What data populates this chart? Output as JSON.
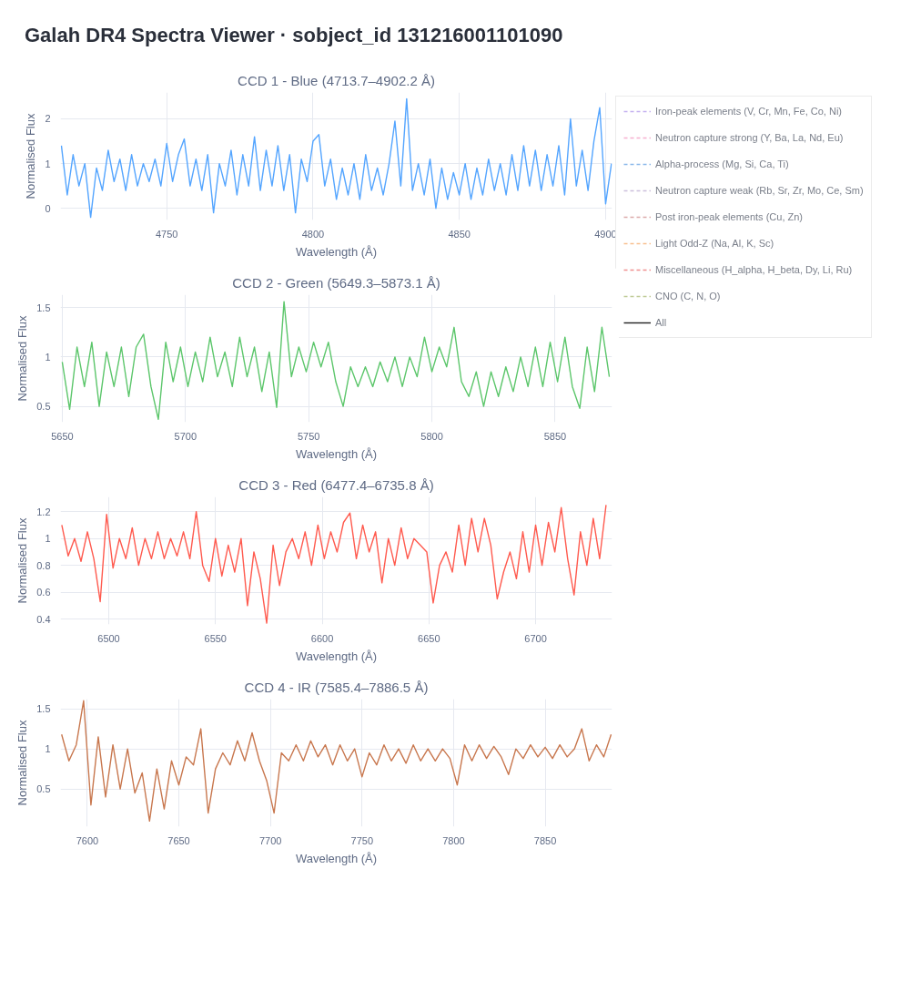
{
  "chart_data": [
    {
      "type": "other",
      "title": "Galah DR4 Spectra Viewer · sobject_id 131216001101090"
    },
    {
      "type": "line",
      "title": "CCD 1 - Blue (4713.7–4902.2 Å)",
      "xlabel": "Wavelength (Å)",
      "ylabel": "Normalised Flux",
      "xlim": [
        4713.7,
        4902.2
      ],
      "ylim": [
        -0.26,
        2.59
      ],
      "xticks": [
        4750,
        4800,
        4850,
        4900
      ],
      "yticks": [
        0,
        1,
        2
      ],
      "grid": true,
      "legend": "right",
      "series": [
        {
          "color": "#54a5ff",
          "x": [
            4714,
            4716,
            4718,
            4720,
            4722,
            4724,
            4726,
            4728,
            4730,
            4732,
            4734,
            4736,
            4738,
            4740,
            4742,
            4744,
            4746,
            4748,
            4750,
            4752,
            4754,
            4756,
            4758,
            4760,
            4762,
            4764,
            4766,
            4768,
            4770,
            4772,
            4774,
            4776,
            4778,
            4780,
            4782,
            4784,
            4786,
            4788,
            4790,
            4792,
            4794,
            4796,
            4798,
            4800,
            4802,
            4804,
            4806,
            4808,
            4810,
            4812,
            4814,
            4816,
            4818,
            4820,
            4822,
            4824,
            4826,
            4828,
            4830,
            4832,
            4834,
            4836,
            4838,
            4840,
            4842,
            4844,
            4846,
            4848,
            4850,
            4852,
            4854,
            4856,
            4858,
            4860,
            4862,
            4864,
            4866,
            4868,
            4870,
            4872,
            4874,
            4876,
            4878,
            4880,
            4882,
            4884,
            4886,
            4888,
            4890,
            4892,
            4894,
            4896,
            4898,
            4900,
            4902
          ],
          "values": [
            1.4,
            0.3,
            1.2,
            0.5,
            1.0,
            -0.2,
            0.9,
            0.4,
            1.3,
            0.6,
            1.1,
            0.4,
            1.2,
            0.5,
            1.0,
            0.6,
            1.1,
            0.5,
            1.45,
            0.6,
            1.2,
            1.55,
            0.5,
            1.1,
            0.4,
            1.2,
            -0.1,
            1.0,
            0.5,
            1.3,
            0.3,
            1.2,
            0.5,
            1.6,
            0.4,
            1.3,
            0.5,
            1.4,
            0.4,
            1.2,
            -0.1,
            1.1,
            0.6,
            1.5,
            1.65,
            0.5,
            1.1,
            0.2,
            0.9,
            0.3,
            1.0,
            0.2,
            1.2,
            0.4,
            0.9,
            0.3,
            1.0,
            1.95,
            0.5,
            2.45,
            0.4,
            1.0,
            0.3,
            1.1,
            0.0,
            0.9,
            0.2,
            0.8,
            0.3,
            1.0,
            0.2,
            0.9,
            0.3,
            1.1,
            0.4,
            1.0,
            0.3,
            1.2,
            0.4,
            1.4,
            0.5,
            1.3,
            0.4,
            1.2,
            0.5,
            1.4,
            0.3,
            2.0,
            0.5,
            1.3,
            0.4,
            1.5,
            2.25,
            0.1,
            1.0
          ]
        },
        {
          "name": "Iron-peak elements (V, Cr, Mn, Fe, Co, Ni)",
          "color": "#c4b0f0",
          "line_style": "dashed"
        },
        {
          "name": "Neutron capture strong (Y, Ba, La, Nd, Eu)",
          "color": "#f6b0d0",
          "line_style": "dashed"
        },
        {
          "name": "Alpha-process (Mg, Si, Ca, Ti)",
          "color": "#8ab8ea",
          "line_style": "dashed"
        },
        {
          "name": "Neutron capture weak (Rb, Sr, Zr, Mo, Ce, Sm)",
          "color": "#ccc0dc",
          "line_style": "dashed"
        },
        {
          "name": "Post iron-peak elements (Cu, Zn)",
          "color": "#dcaaaa",
          "line_style": "dashed"
        },
        {
          "name": "Light Odd-Z (Na, Al, K, Sc)",
          "color": "#f8c090",
          "line_style": "dashed"
        },
        {
          "name": "Miscellaneous (H_alpha, H_beta, Dy, Li, Ru)",
          "color": "#f09090",
          "line_style": "dashed"
        },
        {
          "name": "CNO (C, N, O)",
          "color": "#c0cc98",
          "line_style": "dashed"
        },
        {
          "name": "All",
          "color": "#222222",
          "line_style": "solid"
        }
      ]
    },
    {
      "type": "line",
      "title": "CCD 2 - Green (5649.3–5873.1 Å)",
      "xlabel": "Wavelength (Å)",
      "ylabel": "Normalised Flux",
      "xlim": [
        5649.3,
        5873.1
      ],
      "ylim": [
        0.34,
        1.63
      ],
      "xticks": [
        5650,
        5700,
        5750,
        5800,
        5850
      ],
      "yticks": [
        0.5,
        1,
        1.5
      ],
      "grid": true,
      "series": [
        {
          "color": "#5cc66b",
          "x": [
            5650,
            5653,
            5656,
            5659,
            5662,
            5665,
            5668,
            5671,
            5674,
            5677,
            5680,
            5683,
            5686,
            5689,
            5692,
            5695,
            5698,
            5701,
            5704,
            5707,
            5710,
            5713,
            5716,
            5719,
            5722,
            5725,
            5728,
            5731,
            5734,
            5737,
            5740,
            5743,
            5746,
            5749,
            5752,
            5755,
            5758,
            5761,
            5764,
            5767,
            5770,
            5773,
            5776,
            5779,
            5782,
            5785,
            5788,
            5791,
            5794,
            5797,
            5800,
            5803,
            5806,
            5809,
            5812,
            5815,
            5818,
            5821,
            5824,
            5827,
            5830,
            5833,
            5836,
            5839,
            5842,
            5845,
            5848,
            5851,
            5854,
            5857,
            5860,
            5863,
            5866,
            5869,
            5872
          ],
          "values": [
            0.95,
            0.47,
            1.1,
            0.7,
            1.15,
            0.5,
            1.05,
            0.7,
            1.1,
            0.6,
            1.1,
            1.23,
            0.7,
            0.37,
            1.15,
            0.75,
            1.1,
            0.7,
            1.05,
            0.75,
            1.2,
            0.8,
            1.05,
            0.7,
            1.2,
            0.8,
            1.1,
            0.65,
            1.05,
            0.49,
            1.56,
            0.8,
            1.1,
            0.85,
            1.15,
            0.9,
            1.15,
            0.75,
            0.5,
            0.9,
            0.7,
            0.9,
            0.7,
            0.95,
            0.75,
            1.0,
            0.7,
            1.0,
            0.8,
            1.2,
            0.85,
            1.1,
            0.9,
            1.3,
            0.75,
            0.6,
            0.85,
            0.5,
            0.85,
            0.6,
            0.9,
            0.65,
            1.0,
            0.7,
            1.1,
            0.7,
            1.15,
            0.75,
            1.2,
            0.7,
            0.48,
            1.1,
            0.65,
            1.3,
            0.8
          ]
        }
      ]
    },
    {
      "type": "line",
      "title": "CCD 3 - Red (6477.4–6735.8 Å)",
      "xlabel": "Wavelength (Å)",
      "ylabel": "Normalised Flux",
      "xlim": [
        6477.4,
        6735.8
      ],
      "ylim": [
        0.36,
        1.31
      ],
      "xticks": [
        6500,
        6550,
        6600,
        6650,
        6700
      ],
      "yticks": [
        0.4,
        0.6,
        0.8,
        1,
        1.2
      ],
      "grid": true,
      "series": [
        {
          "color": "#ff5a4e",
          "x": [
            6478,
            6481,
            6484,
            6487,
            6490,
            6493,
            6496,
            6499,
            6502,
            6505,
            6508,
            6511,
            6514,
            6517,
            6520,
            6523,
            6526,
            6529,
            6532,
            6535,
            6538,
            6541,
            6544,
            6547,
            6550,
            6553,
            6556,
            6559,
            6562,
            6565,
            6568,
            6571,
            6574,
            6577,
            6580,
            6583,
            6586,
            6589,
            6592,
            6595,
            6598,
            6601,
            6604,
            6607,
            6610,
            6613,
            6616,
            6619,
            6622,
            6625,
            6628,
            6631,
            6634,
            6637,
            6640,
            6643,
            6646,
            6649,
            6652,
            6655,
            6658,
            6661,
            6664,
            6667,
            6670,
            6673,
            6676,
            6679,
            6682,
            6685,
            6688,
            6691,
            6694,
            6697,
            6700,
            6703,
            6706,
            6709,
            6712,
            6715,
            6718,
            6721,
            6724,
            6727,
            6730,
            6733
          ],
          "values": [
            1.1,
            0.87,
            1.0,
            0.83,
            1.05,
            0.85,
            0.53,
            1.18,
            0.78,
            1.0,
            0.85,
            1.08,
            0.8,
            1.0,
            0.85,
            1.05,
            0.85,
            1.0,
            0.87,
            1.05,
            0.85,
            1.2,
            0.8,
            0.68,
            1.0,
            0.72,
            0.95,
            0.75,
            1.0,
            0.5,
            0.9,
            0.7,
            0.37,
            0.95,
            0.65,
            0.9,
            1.0,
            0.85,
            1.05,
            0.8,
            1.1,
            0.85,
            1.05,
            0.9,
            1.12,
            1.19,
            0.85,
            1.1,
            0.9,
            1.05,
            0.67,
            1.0,
            0.8,
            1.08,
            0.85,
            1.0,
            0.95,
            0.9,
            0.52,
            0.8,
            0.9,
            0.75,
            1.1,
            0.8,
            1.15,
            0.9,
            1.15,
            0.95,
            0.55,
            0.75,
            0.9,
            0.7,
            1.05,
            0.75,
            1.1,
            0.8,
            1.12,
            0.9,
            1.23,
            0.85,
            0.58,
            1.05,
            0.8,
            1.15,
            0.85,
            1.25
          ]
        }
      ]
    },
    {
      "type": "line",
      "title": "CCD 4 - IR (7585.4–7886.5 Å)",
      "xlabel": "Wavelength (Å)",
      "ylabel": "Normalised Flux",
      "xlim": [
        7585.4,
        7886.5
      ],
      "ylim": [
        0.03,
        1.62
      ],
      "xticks": [
        7600,
        7650,
        7700,
        7750,
        7800,
        7850
      ],
      "yticks": [
        0.5,
        1,
        1.5
      ],
      "grid": true,
      "series": [
        {
          "color": "#c8774e",
          "x": [
            7586,
            7590,
            7594,
            7598,
            7602,
            7606,
            7610,
            7614,
            7618,
            7622,
            7626,
            7630,
            7634,
            7638,
            7642,
            7646,
            7650,
            7654,
            7658,
            7662,
            7666,
            7670,
            7674,
            7678,
            7682,
            7686,
            7690,
            7694,
            7698,
            7702,
            7706,
            7710,
            7714,
            7718,
            7722,
            7726,
            7730,
            7734,
            7738,
            7742,
            7746,
            7750,
            7754,
            7758,
            7762,
            7766,
            7770,
            7774,
            7778,
            7782,
            7786,
            7790,
            7794,
            7798,
            7802,
            7806,
            7810,
            7814,
            7818,
            7822,
            7826,
            7830,
            7834,
            7838,
            7842,
            7846,
            7850,
            7854,
            7858,
            7862,
            7866,
            7870,
            7874,
            7878,
            7882,
            7886
          ],
          "values": [
            1.18,
            0.85,
            1.05,
            1.6,
            0.3,
            1.15,
            0.4,
            1.05,
            0.5,
            1.0,
            0.45,
            0.7,
            0.1,
            0.75,
            0.25,
            0.85,
            0.55,
            0.9,
            0.8,
            1.25,
            0.2,
            0.75,
            0.95,
            0.8,
            1.1,
            0.85,
            1.2,
            0.85,
            0.6,
            0.2,
            0.95,
            0.85,
            1.05,
            0.85,
            1.1,
            0.9,
            1.05,
            0.8,
            1.05,
            0.85,
            1.0,
            0.65,
            0.95,
            0.8,
            1.05,
            0.85,
            1.0,
            0.82,
            1.05,
            0.85,
            1.0,
            0.85,
            1.0,
            0.88,
            0.55,
            1.05,
            0.85,
            1.05,
            0.88,
            1.03,
            0.9,
            0.68,
            1.0,
            0.88,
            1.05,
            0.9,
            1.02,
            0.88,
            1.05,
            0.9,
            1.0,
            1.25,
            0.85,
            1.05,
            0.9,
            1.18
          ]
        }
      ]
    }
  ]
}
